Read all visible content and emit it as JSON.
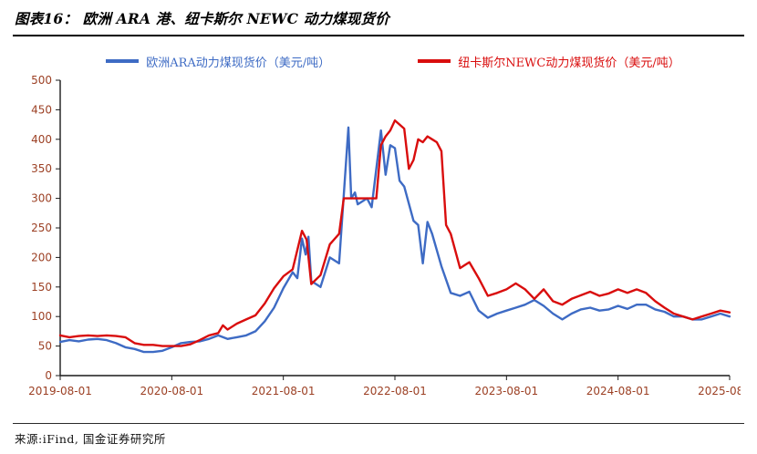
{
  "header": {
    "title": "图表16： 欧洲 ARA 港、纽卡斯尔 NEWC 动力煤现货价"
  },
  "footer": {
    "source": "来源:iFind, 国金证券研究所"
  },
  "colors": {
    "ara_blue": "#3E6BC4",
    "newc_red": "#D90D0D",
    "axis_label": "#9C4024",
    "axis_line": "#1A1A1A"
  },
  "chart_data": {
    "type": "line",
    "title": "图表16： 欧洲 ARA 港、纽卡斯尔 NEWC 动力煤现货价",
    "xlabel": "",
    "ylabel": "",
    "grid": false,
    "legend_position": "top",
    "ylim": [
      0,
      500
    ],
    "y_ticks": [
      0,
      50,
      100,
      150,
      200,
      250,
      300,
      350,
      400,
      450,
      500
    ],
    "xlim": [
      0,
      72
    ],
    "x_unit": "months since 2019-08-01",
    "x_ticks": [
      {
        "pos": 0,
        "label": "2019-08-01"
      },
      {
        "pos": 12,
        "label": "2020-08-01"
      },
      {
        "pos": 24,
        "label": "2021-08-01"
      },
      {
        "pos": 36,
        "label": "2022-08-01"
      },
      {
        "pos": 48,
        "label": "2023-08-01"
      },
      {
        "pos": 60,
        "label": "2024-08-01"
      },
      {
        "pos": 72,
        "label": "2025-08-01"
      }
    ],
    "legend": [
      {
        "label": "欧洲ARA动力煤现货价（美元/吨）",
        "color": "#3E6BC4"
      },
      {
        "label": "纽卡斯尔NEWC动力煤现货价（美元/吨）",
        "color": "#D90D0D"
      }
    ],
    "series": [
      {
        "name": "欧洲ARA动力煤现货价（美元/吨）",
        "color": "#3E6BC4",
        "points": [
          [
            0,
            57
          ],
          [
            1,
            60
          ],
          [
            2,
            58
          ],
          [
            3,
            61
          ],
          [
            4,
            62
          ],
          [
            5,
            60
          ],
          [
            6,
            55
          ],
          [
            7,
            48
          ],
          [
            8,
            45
          ],
          [
            9,
            40
          ],
          [
            10,
            40
          ],
          [
            11,
            42
          ],
          [
            12,
            48
          ],
          [
            13,
            55
          ],
          [
            14,
            57
          ],
          [
            15,
            58
          ],
          [
            16,
            62
          ],
          [
            17,
            68
          ],
          [
            18,
            62
          ],
          [
            19,
            65
          ],
          [
            20,
            68
          ],
          [
            21,
            75
          ],
          [
            22,
            92
          ],
          [
            23,
            115
          ],
          [
            24,
            148
          ],
          [
            25,
            175
          ],
          [
            25.5,
            165
          ],
          [
            26,
            232
          ],
          [
            26.4,
            205
          ],
          [
            26.7,
            235
          ],
          [
            27,
            160
          ],
          [
            28,
            150
          ],
          [
            29,
            200
          ],
          [
            30,
            190
          ],
          [
            31,
            420
          ],
          [
            31.3,
            300
          ],
          [
            31.7,
            310
          ],
          [
            32,
            290
          ],
          [
            33,
            300
          ],
          [
            33.5,
            285
          ],
          [
            34,
            350
          ],
          [
            34.5,
            415
          ],
          [
            35,
            340
          ],
          [
            35.5,
            390
          ],
          [
            36,
            385
          ],
          [
            36.5,
            330
          ],
          [
            37,
            320
          ],
          [
            38,
            262
          ],
          [
            38.5,
            255
          ],
          [
            39,
            190
          ],
          [
            39.5,
            260
          ],
          [
            40,
            240
          ],
          [
            41,
            185
          ],
          [
            42,
            140
          ],
          [
            43,
            135
          ],
          [
            44,
            142
          ],
          [
            45,
            110
          ],
          [
            46,
            98
          ],
          [
            47,
            105
          ],
          [
            48,
            110
          ],
          [
            49,
            115
          ],
          [
            50,
            120
          ],
          [
            51,
            128
          ],
          [
            52,
            118
          ],
          [
            53,
            105
          ],
          [
            54,
            95
          ],
          [
            55,
            105
          ],
          [
            56,
            112
          ],
          [
            57,
            115
          ],
          [
            58,
            110
          ],
          [
            59,
            112
          ],
          [
            60,
            118
          ],
          [
            61,
            113
          ],
          [
            62,
            120
          ],
          [
            63,
            120
          ],
          [
            64,
            112
          ],
          [
            65,
            108
          ],
          [
            66,
            100
          ],
          [
            67,
            100
          ],
          [
            68,
            95
          ],
          [
            69,
            95
          ],
          [
            70,
            100
          ],
          [
            71,
            105
          ],
          [
            72,
            100
          ]
        ]
      },
      {
        "name": "纽卡斯尔NEWC动力煤现货价（美元/吨）",
        "color": "#D90D0D",
        "points": [
          [
            0,
            68
          ],
          [
            1,
            65
          ],
          [
            2,
            67
          ],
          [
            3,
            68
          ],
          [
            4,
            67
          ],
          [
            5,
            68
          ],
          [
            6,
            67
          ],
          [
            7,
            65
          ],
          [
            8,
            55
          ],
          [
            9,
            52
          ],
          [
            10,
            52
          ],
          [
            11,
            50
          ],
          [
            12,
            50
          ],
          [
            13,
            50
          ],
          [
            14,
            53
          ],
          [
            15,
            60
          ],
          [
            16,
            68
          ],
          [
            17,
            72
          ],
          [
            17.5,
            85
          ],
          [
            18,
            78
          ],
          [
            19,
            88
          ],
          [
            20,
            95
          ],
          [
            21,
            102
          ],
          [
            22,
            122
          ],
          [
            23,
            148
          ],
          [
            24,
            168
          ],
          [
            25,
            180
          ],
          [
            26,
            245
          ],
          [
            26.5,
            230
          ],
          [
            27,
            155
          ],
          [
            28,
            170
          ],
          [
            29,
            222
          ],
          [
            30,
            240
          ],
          [
            30.5,
            300
          ],
          [
            31,
            300
          ],
          [
            32,
            300
          ],
          [
            33,
            300
          ],
          [
            34,
            300
          ],
          [
            34.5,
            390
          ],
          [
            35,
            405
          ],
          [
            35.5,
            415
          ],
          [
            36,
            432
          ],
          [
            36.5,
            425
          ],
          [
            37,
            418
          ],
          [
            37.5,
            350
          ],
          [
            38,
            365
          ],
          [
            38.5,
            400
          ],
          [
            39,
            395
          ],
          [
            39.5,
            405
          ],
          [
            40,
            400
          ],
          [
            40.5,
            395
          ],
          [
            41,
            380
          ],
          [
            41.5,
            255
          ],
          [
            42,
            240
          ],
          [
            43,
            182
          ],
          [
            44,
            192
          ],
          [
            45,
            165
          ],
          [
            46,
            135
          ],
          [
            47,
            140
          ],
          [
            48,
            146
          ],
          [
            49,
            156
          ],
          [
            50,
            146
          ],
          [
            51,
            130
          ],
          [
            52,
            146
          ],
          [
            53,
            126
          ],
          [
            54,
            120
          ],
          [
            55,
            130
          ],
          [
            56,
            136
          ],
          [
            57,
            142
          ],
          [
            58,
            135
          ],
          [
            59,
            139
          ],
          [
            60,
            146
          ],
          [
            61,
            140
          ],
          [
            62,
            146
          ],
          [
            63,
            140
          ],
          [
            64,
            126
          ],
          [
            65,
            115
          ],
          [
            66,
            105
          ],
          [
            67,
            100
          ],
          [
            68,
            95
          ],
          [
            69,
            100
          ],
          [
            70,
            105
          ],
          [
            71,
            110
          ],
          [
            72,
            107
          ]
        ]
      }
    ]
  }
}
